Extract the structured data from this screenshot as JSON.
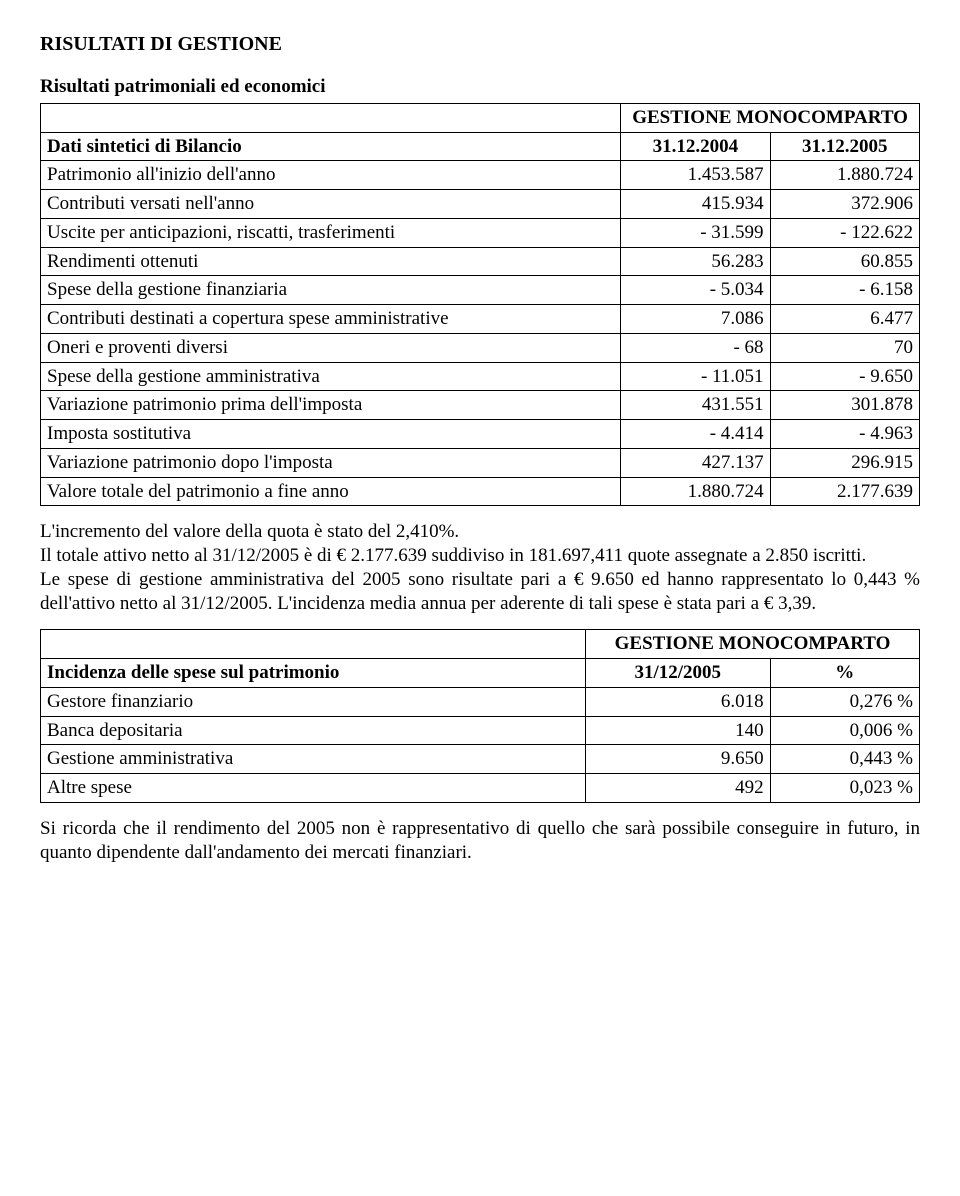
{
  "title": "RISULTATI DI GESTIONE",
  "subtitle": "Risultati patrimoniali ed economici",
  "table1": {
    "header_merged": "GESTIONE MONOCOMPARTO",
    "row_header": {
      "label": "Dati sintetici di Bilancio",
      "c1": "31.12.2004",
      "c2": "31.12.2005"
    },
    "rows": [
      {
        "label": "Patrimonio all'inizio dell'anno",
        "c1": "1.453.587",
        "c2": "1.880.724"
      },
      {
        "label": "Contributi versati nell'anno",
        "c1": "415.934",
        "c2": "372.906"
      },
      {
        "label": "Uscite per anticipazioni, riscatti, trasferimenti",
        "c1": "- 31.599",
        "c2": "- 122.622"
      },
      {
        "label": "Rendimenti ottenuti",
        "c1": "56.283",
        "c2": "60.855"
      },
      {
        "label": "Spese della gestione finanziaria",
        "c1": "- 5.034",
        "c2": "- 6.158"
      },
      {
        "label": "Contributi destinati a copertura spese amministrative",
        "c1": "7.086",
        "c2": "6.477"
      },
      {
        "label": "Oneri e proventi diversi",
        "c1": "- 68",
        "c2": "70"
      },
      {
        "label": "Spese della gestione amministrativa",
        "c1": "- 11.051",
        "c2": "- 9.650"
      },
      {
        "label": "Variazione patrimonio prima dell'imposta",
        "c1": "431.551",
        "c2": "301.878"
      },
      {
        "label": "Imposta sostitutiva",
        "c1": "- 4.414",
        "c2": "- 4.963"
      },
      {
        "label": "Variazione patrimonio dopo l'imposta",
        "c1": "427.137",
        "c2": "296.915"
      },
      {
        "label": "Valore totale del patrimonio a fine anno",
        "c1": "1.880.724",
        "c2": "2.177.639"
      }
    ]
  },
  "para1": "L'incremento del valore della quota è stato del 2,410%.",
  "para2": "Il totale attivo netto al 31/12/2005 è di € 2.177.639 suddiviso in 181.697,411 quote assegnate a 2.850 iscritti.",
  "para3": "Le spese di gestione amministrativa del 2005 sono risultate pari a € 9.650 ed hanno rappresentato lo 0,443 % dell'attivo netto al 31/12/2005. L'incidenza media annua per aderente di tali spese è stata pari a € 3,39.",
  "table2": {
    "header_merged": "GESTIONE MONOCOMPARTO",
    "row_header": {
      "label": "Incidenza delle spese sul patrimonio",
      "c1": "31/12/2005",
      "c2": "%"
    },
    "rows": [
      {
        "label": "Gestore finanziario",
        "c1": "6.018",
        "c2": "0,276 %"
      },
      {
        "label": "Banca depositaria",
        "c1": "140",
        "c2": "0,006 %"
      },
      {
        "label": "Gestione amministrativa",
        "c1": "9.650",
        "c2": "0,443 %"
      },
      {
        "label": "Altre spese",
        "c1": "492",
        "c2": "0,023 %"
      }
    ]
  },
  "para4": "Si ricorda che il rendimento del 2005 non è rappresentativo di quello che sarà possibile conseguire in futuro, in quanto dipendente dall'andamento dei mercati finanziari."
}
